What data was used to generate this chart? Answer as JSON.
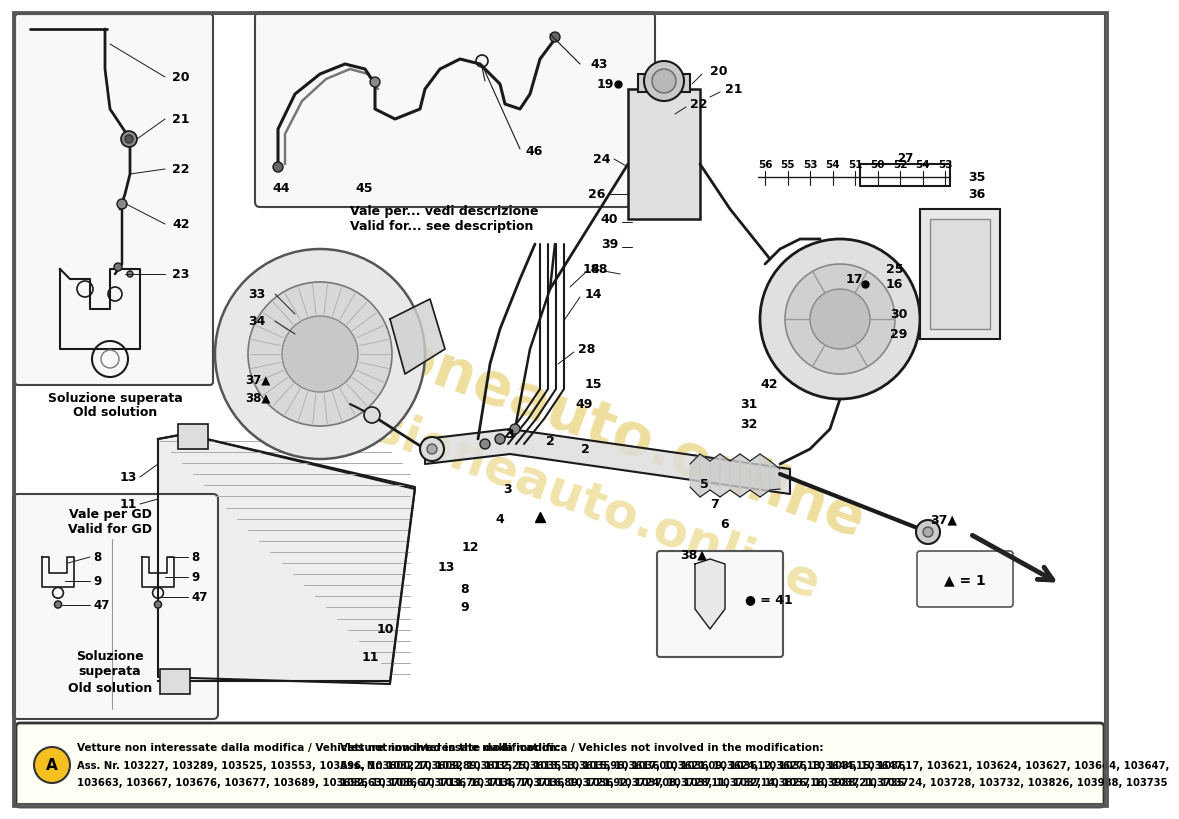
{
  "bg_color": "#ffffff",
  "watermark_text": "passioneauto.online",
  "watermark_color": "#d4aa00",
  "watermark_alpha": 0.38,
  "footer_text_bold": "Vetture non interessate dalla modifica / Vehicles not involved in the modification:",
  "footer_line2": "Ass. Nr. 103227, 103289, 103525, 103553, 103596, 103600, 103609, 103612, 103613, 103615, 103617, 103621, 103624, 103627, 103644, 103647,",
  "footer_line3": "103663, 103667, 103676, 103677, 103689, 103692, 103708, 103711, 103714, 103716, 103721, 103724, 103728, 103732, 103826, 103988, 103735",
  "inset1_label_it": "Soluzione superata",
  "inset1_label_en": "Old solution",
  "inset2_label_it": "Vale per... vedi descrizione",
  "inset2_label_en": "Valid for... see description",
  "inset3_label_top_it": "Vale per GD",
  "inset3_label_top_en": "Valid for GD",
  "inset3_label_bot_it": "Soluzione\nsuperata",
  "inset3_label_bot_en": "Old solution",
  "legend_triangle_text": "▲ = 1",
  "legend_circle_text": "● = 41"
}
